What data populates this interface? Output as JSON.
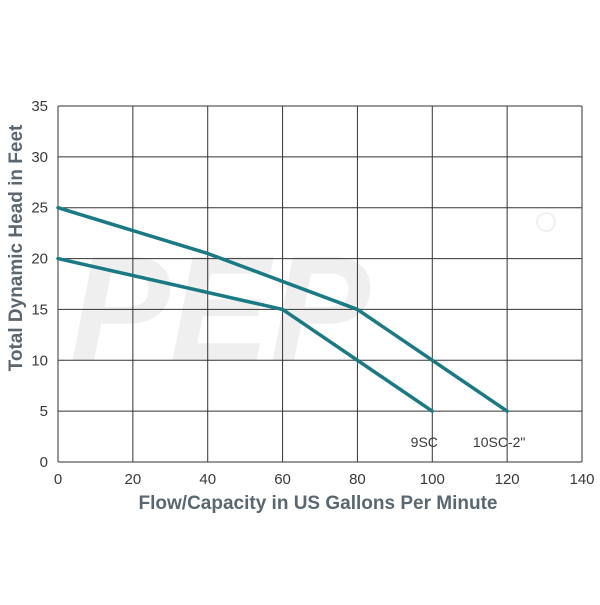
{
  "chart_data": {
    "type": "line",
    "xlabel": "Flow/Capacity in US Gallons Per Minute",
    "ylabel": "Total Dynamic Head in Feet",
    "xlim": [
      0,
      140
    ],
    "ylim": [
      0,
      35
    ],
    "x_ticks": [
      0,
      20,
      40,
      60,
      80,
      100,
      120,
      140
    ],
    "y_ticks": [
      0,
      5,
      10,
      15,
      20,
      25,
      30,
      35
    ],
    "grid": true,
    "legend": "none (series labeled at line ends)",
    "series": [
      {
        "name": "9SC",
        "x": [
          0,
          60,
          100
        ],
        "y": [
          20,
          15,
          5
        ]
      },
      {
        "name": "10SC-2\"",
        "x": [
          0,
          40,
          80,
          120
        ],
        "y": [
          25,
          20.5,
          15,
          5
        ]
      }
    ],
    "colors": {
      "series": "#1a7a84",
      "grid": "#333333",
      "text": "#3a3a3a",
      "axis_title": "#5b6770"
    }
  },
  "watermark": {
    "text": "PEP"
  }
}
